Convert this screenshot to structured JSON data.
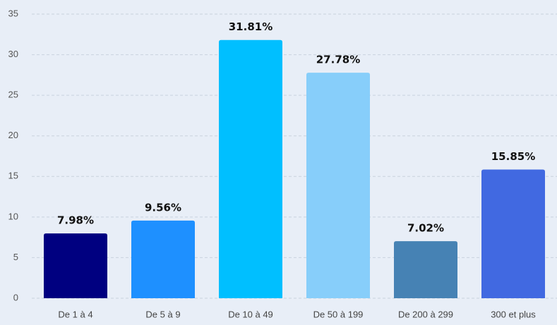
{
  "chart_data": {
    "type": "bar",
    "categories": [
      "De 1 à 4",
      "De 5 à 9",
      "De 10 à 49",
      "De 50 à 199",
      "De 200 à 299",
      "300 et plus"
    ],
    "values": [
      7.98,
      9.56,
      31.81,
      27.78,
      7.02,
      15.85
    ],
    "value_labels": [
      "7.98%",
      "9.56%",
      "31.81%",
      "27.78%",
      "7.02%",
      "15.85%"
    ],
    "colors": [
      "#000080",
      "#1e90ff",
      "#00bfff",
      "#87cefa",
      "#4682b4",
      "#4169e1"
    ],
    "ylim": [
      0,
      35
    ],
    "yticks": [
      0,
      5,
      10,
      15,
      20,
      25,
      30,
      35
    ],
    "grid": true
  }
}
